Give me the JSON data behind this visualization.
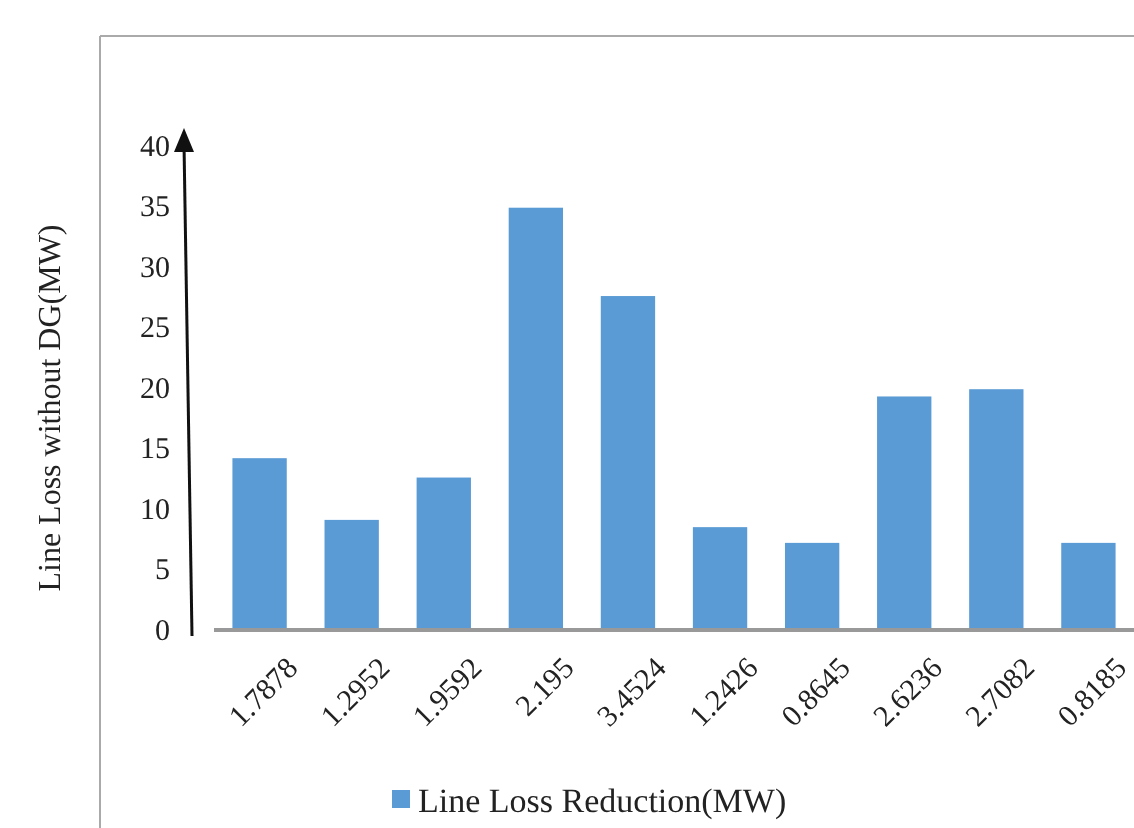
{
  "chart_data": {
    "type": "bar",
    "categories": [
      "1.7878",
      "1.2952",
      "1.9592",
      "2.195",
      "3.4524",
      "1.2426",
      "0.8645",
      "2.6236",
      "2.7082",
      "0.8185"
    ],
    "series": [
      {
        "name": "Line Loss Reduction(MW)",
        "color": "#5b9bd5",
        "values": [
          14.2,
          9.1,
          12.6,
          34.9,
          27.6,
          8.5,
          7.2,
          19.3,
          19.9,
          7.2
        ]
      }
    ],
    "ylabel": "Line Loss without DG(MW)",
    "ylim": [
      0,
      40
    ],
    "yticks": [
      0,
      5,
      10,
      15,
      20,
      25,
      30,
      35,
      40
    ],
    "grid": false,
    "legend": "bottom"
  }
}
